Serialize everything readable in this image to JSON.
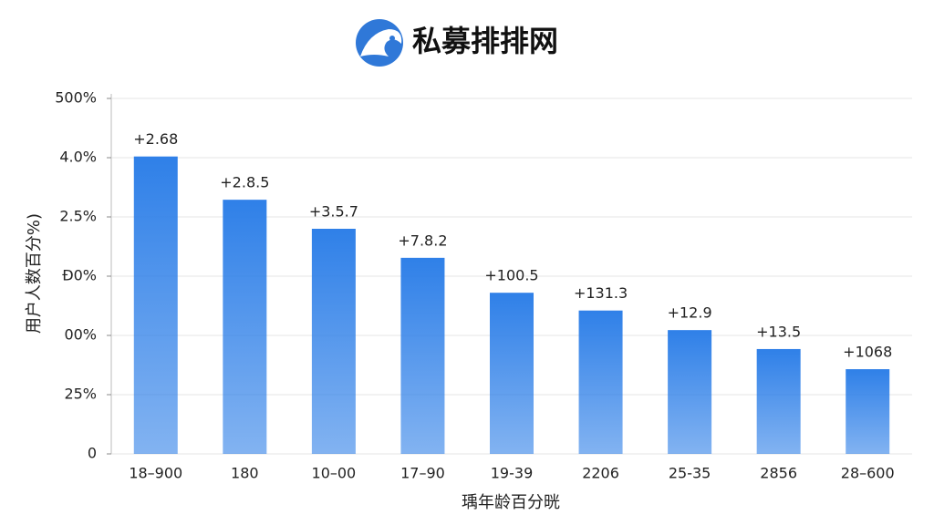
{
  "chart_data": {
    "type": "bar",
    "title": "私募排排网",
    "y_label": "用户人数百分%)",
    "x_label": "瑀年龄百分晄",
    "categories": [
      "18–900",
      "180",
      "10–00",
      "17–90",
      "19-39",
      "2206",
      "25-35",
      "2856",
      "28–600"
    ],
    "values": [
      5.02,
      4.29,
      3.8,
      3.31,
      2.72,
      2.42,
      2.09,
      1.77,
      1.43
    ],
    "annotations": [
      "+2.68",
      "+2.8.5",
      "+3.5.7",
      "+7.8.2",
      "+100.5",
      "+131.3",
      "+12.9",
      "+13.5",
      "+1068"
    ],
    "color": "#2f80e8",
    "ylim": [
      0,
      6
    ],
    "yticks": [
      0,
      {
        "value": 1,
        "label": "25%"
      },
      {
        "value": 2,
        "label": "00%"
      },
      {
        "value": 3,
        "label": "Đ0%"
      },
      {
        "value": 4,
        "label": "2.5%"
      },
      {
        "value": 5,
        "label": "4.0%"
      },
      {
        "value": 6,
        "label": "500%"
      }
    ],
    "grid": true
  }
}
